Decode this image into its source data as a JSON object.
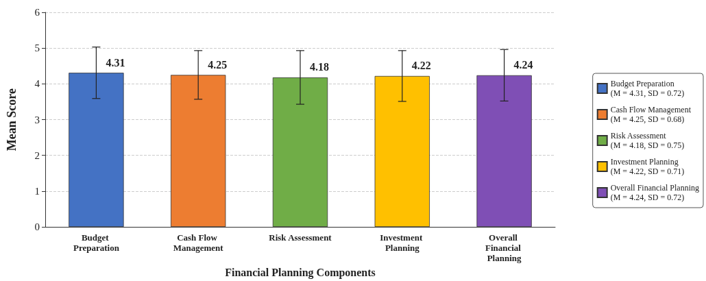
{
  "chart_data": {
    "type": "bar",
    "xlabel": "Financial Planning Components",
    "ylabel": "Mean Score",
    "categories": [
      "Budget Preparation",
      "Cash Flow Management",
      "Risk Assessment",
      "Investment Planning",
      "Overall Financial Planning"
    ],
    "series": [
      {
        "name": "Budget Preparation\n(M = 4.31, SD = 0.72)",
        "color": "#4472c4",
        "values": [
          4.31,
          null,
          null,
          null,
          null
        ],
        "errors": [
          0.72,
          null,
          null,
          null,
          null
        ]
      },
      {
        "name": "Cash Flow Management\n(M = 4.25, SD = 0.68)",
        "color": "#ed7d31",
        "values": [
          null,
          4.25,
          null,
          null,
          null
        ],
        "errors": [
          null,
          0.68,
          null,
          null,
          null
        ]
      },
      {
        "name": "Risk Assessment\n(M = 4.18, SD = 0.75)",
        "color": "#70ad47",
        "values": [
          null,
          null,
          4.18,
          null,
          null
        ],
        "errors": [
          null,
          null,
          0.75,
          null,
          null
        ]
      },
      {
        "name": "Investment Planning\n(M = 4.22, SD = 0.71)",
        "color": "#ffc000",
        "values": [
          null,
          null,
          null,
          4.22,
          null
        ],
        "errors": [
          null,
          null,
          null,
          0.71,
          null
        ]
      },
      {
        "name": "Overall Financial Planning\n(M = 4.24, SD = 0.72)",
        "color": "#7f4fb5",
        "values": [
          null,
          null,
          null,
          null,
          4.24
        ],
        "errors": [
          null,
          null,
          null,
          null,
          0.72
        ]
      }
    ],
    "ylim": [
      0,
      6
    ],
    "yticks": [
      0,
      1,
      2,
      3,
      4,
      5,
      6
    ],
    "grid": "y",
    "legend": "right",
    "data_labels": true
  }
}
